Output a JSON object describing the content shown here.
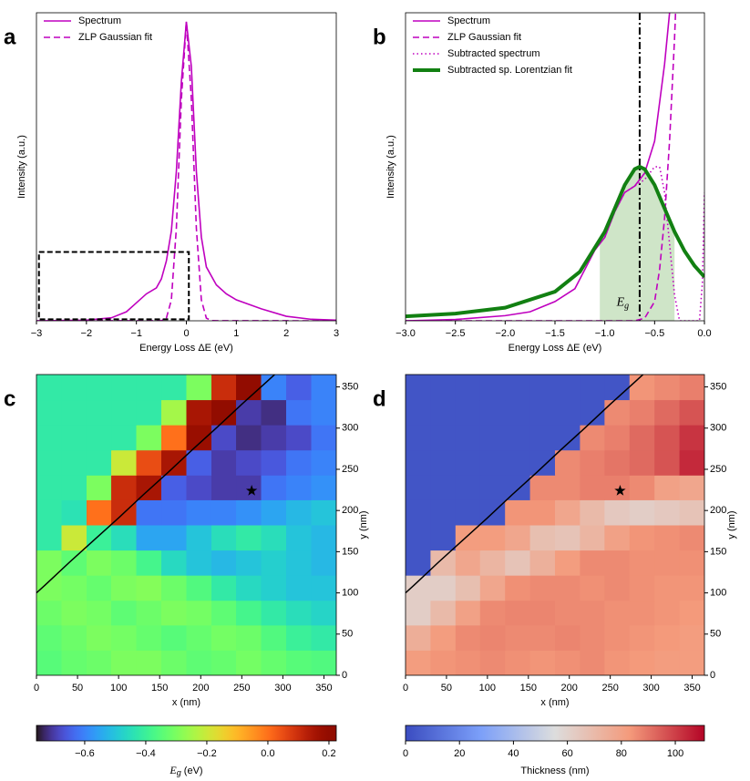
{
  "chart_data": [
    {
      "type": "line",
      "title": "a",
      "xlabel": "Energy Loss ΔE (eV)",
      "ylabel": "Intensity (a.u.)",
      "xlim": [
        -3,
        3
      ],
      "ylim": [
        0,
        1.03
      ],
      "xticks": [
        {
          "value": -3,
          "label": "−3"
        },
        {
          "value": -2,
          "label": "−2"
        },
        {
          "value": -1,
          "label": "−1"
        },
        0,
        1,
        2,
        3
      ],
      "legend": "upper left",
      "series": [
        {
          "name": "Spectrum",
          "color": "#bf00bf",
          "style": "solid",
          "width": 1.6,
          "x": [
            -3,
            -2,
            -1.5,
            -1.2,
            -1,
            -0.8,
            -0.6,
            -0.5,
            -0.4,
            -0.3,
            -0.2,
            -0.1,
            0,
            0.1,
            0.2,
            0.3,
            0.4,
            0.6,
            0.8,
            1,
            1.5,
            2,
            2.5,
            3
          ],
          "values": [
            0,
            0.002,
            0.01,
            0.03,
            0.06,
            0.09,
            0.11,
            0.14,
            0.2,
            0.3,
            0.5,
            0.8,
            1.0,
            0.85,
            0.5,
            0.28,
            0.18,
            0.12,
            0.09,
            0.07,
            0.04,
            0.015,
            0.005,
            0.002
          ]
        },
        {
          "name": "ZLP Gaussian fit",
          "color": "#bf00bf",
          "style": "dashed",
          "width": 1.6,
          "x": [
            -3,
            -0.6,
            -0.5,
            -0.4,
            -0.3,
            -0.2,
            -0.1,
            0,
            0.1,
            0.2,
            0.3,
            0.4,
            0.5,
            0.6,
            3
          ],
          "values": [
            0,
            0.0001,
            0.0006,
            0.009,
            0.07,
            0.31,
            0.74,
            1.0,
            0.74,
            0.31,
            0.07,
            0.009,
            0.0006,
            0.0001,
            0
          ]
        }
      ],
      "inset_box": {
        "x": [
          -2.95,
          0.05
        ],
        "y": [
          0.005,
          0.23
        ]
      }
    },
    {
      "type": "line",
      "title": "b",
      "xlabel": "Energy Loss ΔE (eV)",
      "ylabel": "Intensity (a.u.)",
      "xlim": [
        -3,
        0
      ],
      "ylim": [
        0,
        0.24
      ],
      "xticks": [
        {
          "value": -3,
          "label": "−3.0"
        },
        {
          "value": -2.5,
          "label": "−2.5"
        },
        {
          "value": -2,
          "label": "−2.0"
        },
        {
          "value": -1.5,
          "label": "−1.5"
        },
        {
          "value": -1,
          "label": "−1.0"
        },
        {
          "value": -0.5,
          "label": "−0.5"
        },
        {
          "value": 0,
          "label": "0.0"
        }
      ],
      "legend": "upper left",
      "series": [
        {
          "name": "Spectrum",
          "color": "#bf00bf",
          "style": "solid",
          "width": 1.6,
          "x": [
            -3,
            -2.5,
            -2,
            -1.75,
            -1.5,
            -1.3,
            -1.2,
            -1.1,
            -1,
            -0.9,
            -0.8,
            -0.7,
            -0.6,
            -0.5,
            -0.45,
            -0.4,
            -0.35,
            -0.33
          ],
          "values": [
            0,
            0.001,
            0.004,
            0.007,
            0.015,
            0.025,
            0.04,
            0.055,
            0.065,
            0.085,
            0.1,
            0.105,
            0.115,
            0.14,
            0.17,
            0.2,
            0.24,
            0.26
          ]
        },
        {
          "name": "ZLP Gaussian fit",
          "color": "#bf00bf",
          "style": "dashed",
          "width": 1.6,
          "x": [
            -3,
            -0.7,
            -0.6,
            -0.5,
            -0.45,
            -0.4,
            -0.35,
            -0.3,
            -0.28
          ],
          "values": [
            0,
            0,
            0.002,
            0.015,
            0.04,
            0.08,
            0.14,
            0.22,
            0.26
          ]
        },
        {
          "name": "Subtracted spectrum",
          "color": "#bf00bf",
          "style": "dotted",
          "width": 1.6,
          "x": [
            -1,
            -0.9,
            -0.8,
            -0.7,
            -0.6,
            -0.5,
            -0.45,
            -0.4,
            -0.35,
            -0.3,
            -0.25,
            -0.05,
            -0.02,
            0
          ],
          "values": [
            0.065,
            0.085,
            0.1,
            0.105,
            0.11,
            0.12,
            0.12,
            0.1,
            0.06,
            0.02,
            0,
            0,
            0.03,
            0.1
          ]
        },
        {
          "name": "Subtracted sp. Lorentzian fit",
          "color": "#128012",
          "style": "solid",
          "width": 4,
          "x": [
            -3,
            -2.5,
            -2,
            -1.5,
            -1.25,
            -1,
            -0.9,
            -0.8,
            -0.7,
            -0.65,
            -0.6,
            -0.5,
            -0.4,
            -0.3,
            -0.2,
            -0.1,
            0
          ],
          "values": [
            0.0035,
            0.0056,
            0.0102,
            0.0227,
            0.0382,
            0.0694,
            0.0875,
            0.1058,
            0.1182,
            0.12,
            0.1182,
            0.1058,
            0.0875,
            0.0694,
            0.0544,
            0.0429,
            0.0342
          ]
        }
      ],
      "shade": {
        "x": [
          -1.05,
          -0.3
        ],
        "color": "#cfe5c8"
      },
      "vline": {
        "x": -0.65,
        "color": "#000000"
      },
      "annotation": {
        "text": "E",
        "sub": "g",
        "x": -0.82,
        "y": 0.014
      }
    },
    {
      "type": "heatmap",
      "title": "c",
      "xlabel": "x (nm)",
      "ylabel": "y (nm)",
      "xlim": [
        0,
        365
      ],
      "ylim": [
        0,
        365
      ],
      "xticks": [
        0,
        50,
        100,
        150,
        200,
        250,
        300,
        350
      ],
      "yticks": [
        0,
        50,
        100,
        150,
        200,
        250,
        300,
        350
      ],
      "x": [
        15,
        46,
        76,
        106,
        137,
        167,
        198,
        228,
        258,
        289,
        319,
        350
      ],
      "y": [
        15,
        46,
        76,
        106,
        137,
        167,
        198,
        228,
        258,
        289,
        319,
        350
      ],
      "z": [
        [
          -0.35,
          -0.33,
          -0.32,
          -0.3,
          -0.3,
          -0.32,
          -0.34,
          -0.33,
          -0.31,
          -0.33,
          -0.35,
          -0.36
        ],
        [
          -0.34,
          -0.32,
          -0.3,
          -0.31,
          -0.33,
          -0.35,
          -0.33,
          -0.31,
          -0.32,
          -0.36,
          -0.4,
          -0.42
        ],
        [
          -0.32,
          -0.3,
          -0.31,
          -0.34,
          -0.32,
          -0.3,
          -0.31,
          -0.34,
          -0.38,
          -0.42,
          -0.45,
          -0.47
        ],
        [
          -0.3,
          -0.31,
          -0.33,
          -0.3,
          -0.29,
          -0.32,
          -0.36,
          -0.42,
          -0.46,
          -0.48,
          -0.5,
          -0.5
        ],
        [
          -0.3,
          -0.34,
          -0.3,
          -0.32,
          -0.38,
          -0.46,
          -0.5,
          -0.52,
          -0.5,
          -0.48,
          -0.5,
          -0.52
        ],
        [
          -0.42,
          -0.2,
          -0.4,
          -0.45,
          -0.55,
          -0.55,
          -0.5,
          -0.45,
          -0.42,
          -0.45,
          -0.5,
          -0.52
        ],
        [
          -0.42,
          -0.44,
          0.0,
          0.1,
          -0.62,
          -0.62,
          -0.6,
          -0.6,
          -0.58,
          -0.55,
          -0.52,
          -0.5
        ],
        [
          -0.42,
          -0.42,
          -0.3,
          0.1,
          0.15,
          -0.65,
          -0.68,
          -0.7,
          -0.7,
          -0.62,
          -0.6,
          -0.58
        ],
        [
          -0.42,
          -0.42,
          -0.42,
          -0.2,
          0.05,
          0.15,
          -0.65,
          -0.7,
          -0.68,
          -0.66,
          -0.62,
          -0.6
        ],
        [
          -0.42,
          -0.42,
          -0.42,
          -0.42,
          -0.3,
          0.0,
          0.18,
          -0.68,
          -0.72,
          -0.7,
          -0.68,
          -0.62
        ],
        [
          -0.42,
          -0.42,
          -0.42,
          -0.42,
          -0.42,
          -0.25,
          0.15,
          0.2,
          -0.7,
          -0.72,
          -0.62,
          -0.6
        ],
        [
          -0.42,
          -0.42,
          -0.42,
          -0.42,
          -0.42,
          -0.42,
          -0.3,
          0.1,
          0.2,
          -0.6,
          -0.65,
          -0.6
        ]
      ],
      "colormap": "turbo",
      "zlim": [
        -0.758,
        0.224
      ],
      "cticks": [
        {
          "value": -0.6,
          "label": "−0.6"
        },
        {
          "value": -0.4,
          "label": "−0.4"
        },
        {
          "value": -0.2,
          "label": "−0.2"
        },
        {
          "value": 0,
          "label": "0.0"
        },
        0.2
      ],
      "clabel": {
        "text": "E",
        "sub": "g",
        "rest": " (eV)"
      },
      "boundary": {
        "x": [
          0,
          10,
          40,
          70,
          100,
          130,
          160,
          190,
          220,
          250,
          280,
          290
        ],
        "y": [
          100,
          109,
          137,
          164,
          191,
          219,
          246,
          274,
          301,
          329,
          356,
          365
        ]
      },
      "marker": {
        "x": 262,
        "y": 224
      }
    },
    {
      "type": "heatmap",
      "title": "d",
      "xlabel": "x (nm)",
      "ylabel": "y (nm)",
      "xlim": [
        0,
        365
      ],
      "ylim": [
        0,
        365
      ],
      "xticks": [
        0,
        50,
        100,
        150,
        200,
        250,
        300,
        350
      ],
      "yticks": [
        0,
        50,
        100,
        150,
        200,
        250,
        300,
        350
      ],
      "x": [
        15,
        46,
        76,
        106,
        137,
        167,
        198,
        228,
        258,
        289,
        319,
        350
      ],
      "y": [
        15,
        46,
        76,
        106,
        137,
        167,
        198,
        228,
        258,
        289,
        319,
        350
      ],
      "z": [
        [
          82,
          84,
          85,
          86,
          85,
          84,
          85,
          86,
          84,
          83,
          82,
          82
        ],
        [
          75,
          82,
          86,
          87,
          86,
          86,
          87,
          86,
          85,
          84,
          83,
          82
        ],
        [
          62,
          70,
          80,
          86,
          87,
          87,
          86,
          86,
          85,
          85,
          84,
          83
        ],
        [
          62,
          62,
          68,
          78,
          85,
          86,
          86,
          85,
          86,
          85,
          84,
          84
        ],
        [
          3,
          70,
          78,
          72,
          66,
          74,
          82,
          86,
          86,
          85,
          85,
          85
        ],
        [
          3,
          3,
          82,
          82,
          78,
          68,
          66,
          72,
          80,
          84,
          85,
          86
        ],
        [
          3,
          3,
          3,
          3,
          84,
          84,
          78,
          70,
          64,
          62,
          64,
          66
        ],
        [
          3,
          3,
          3,
          3,
          3,
          86,
          86,
          88,
          88,
          86,
          80,
          78
        ],
        [
          3,
          3,
          3,
          3,
          3,
          3,
          86,
          88,
          90,
          92,
          96,
          104
        ],
        [
          3,
          3,
          3,
          3,
          3,
          3,
          3,
          86,
          88,
          92,
          96,
          102
        ],
        [
          3,
          3,
          3,
          3,
          3,
          3,
          3,
          3,
          86,
          88,
          92,
          96
        ],
        [
          3,
          3,
          3,
          3,
          3,
          3,
          3,
          3,
          3,
          84,
          86,
          88
        ]
      ],
      "colormap": "coolwarm",
      "zlim": [
        0,
        110.8
      ],
      "cticks": [
        0,
        20,
        40,
        60,
        80,
        100
      ],
      "clabel": {
        "text": "Thickness (nm)"
      },
      "boundary": {
        "x": [
          0,
          10,
          40,
          70,
          100,
          130,
          160,
          190,
          220,
          250,
          280,
          290
        ],
        "y": [
          100,
          109,
          137,
          164,
          191,
          219,
          246,
          274,
          301,
          329,
          356,
          365
        ]
      },
      "marker": {
        "x": 262,
        "y": 224
      }
    }
  ]
}
